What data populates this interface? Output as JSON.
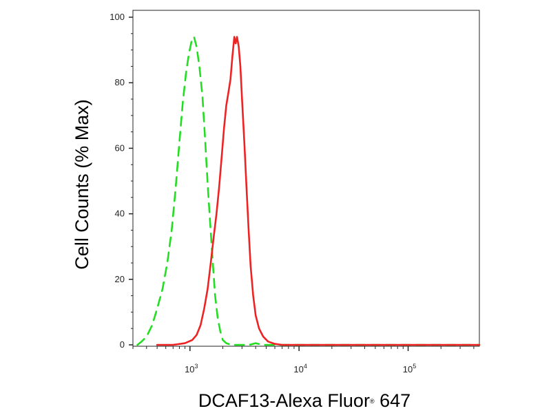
{
  "chart_data": {
    "type": "line",
    "title": "",
    "xlabel": "DCAF13-Alexa Fluor",
    "xlabel_mark": "®",
    "xlabel_suffix": " 647",
    "ylabel": "Cell Counts (% Max)",
    "x_scale": "log",
    "xlim": [
      300,
      450000
    ],
    "ylim": [
      0,
      100
    ],
    "grid": false,
    "legend": "none",
    "yticks": [
      0,
      20,
      40,
      60,
      80,
      100
    ],
    "ytick_labels": [
      "0",
      "20",
      "40",
      "60",
      "80",
      "100"
    ],
    "xticks_major": [
      1000,
      10000,
      100000
    ],
    "xtick_labels": [
      {
        "base": "10",
        "exp": "3"
      },
      {
        "base": "10",
        "exp": "4"
      },
      {
        "base": "10",
        "exp": "5"
      }
    ],
    "series": [
      {
        "name": "",
        "color": "#22dd22",
        "style": "dashed",
        "points": [
          [
            330,
            0
          ],
          [
            360,
            1
          ],
          [
            400,
            2.5
          ],
          [
            450,
            6
          ],
          [
            500,
            11
          ],
          [
            560,
            17
          ],
          [
            620,
            25
          ],
          [
            680,
            35
          ],
          [
            740,
            48
          ],
          [
            800,
            62
          ],
          [
            860,
            74
          ],
          [
            920,
            83
          ],
          [
            980,
            89
          ],
          [
            1040,
            93
          ],
          [
            1090,
            94
          ],
          [
            1150,
            91
          ],
          [
            1220,
            85
          ],
          [
            1300,
            76
          ],
          [
            1380,
            62
          ],
          [
            1460,
            48
          ],
          [
            1540,
            36
          ],
          [
            1620,
            25
          ],
          [
            1700,
            15
          ],
          [
            1800,
            8
          ],
          [
            1900,
            4
          ],
          [
            2000,
            1.5
          ],
          [
            2150,
            0.5
          ],
          [
            2400,
            0
          ],
          [
            3500,
            0
          ],
          [
            4000,
            0.5
          ],
          [
            4600,
            0
          ],
          [
            450000,
            0
          ]
        ]
      },
      {
        "name": "",
        "color": "#ee2222",
        "style": "solid",
        "points": [
          [
            500,
            0
          ],
          [
            700,
            0
          ],
          [
            900,
            0.5
          ],
          [
            1050,
            1.5
          ],
          [
            1150,
            3
          ],
          [
            1250,
            6
          ],
          [
            1350,
            11
          ],
          [
            1450,
            17
          ],
          [
            1550,
            25
          ],
          [
            1650,
            33
          ],
          [
            1750,
            40
          ],
          [
            1850,
            48
          ],
          [
            1950,
            57
          ],
          [
            2050,
            66
          ],
          [
            2150,
            73
          ],
          [
            2250,
            77
          ],
          [
            2350,
            81
          ],
          [
            2450,
            88
          ],
          [
            2550,
            94
          ],
          [
            2620,
            92
          ],
          [
            2700,
            94
          ],
          [
            2800,
            91
          ],
          [
            2900,
            85
          ],
          [
            3000,
            75
          ],
          [
            3150,
            62
          ],
          [
            3300,
            48
          ],
          [
            3450,
            35
          ],
          [
            3600,
            24
          ],
          [
            3800,
            15
          ],
          [
            4000,
            9
          ],
          [
            4300,
            5
          ],
          [
            4700,
            2.5
          ],
          [
            5200,
            1
          ],
          [
            6000,
            0.3
          ],
          [
            7000,
            0
          ],
          [
            450000,
            0
          ]
        ]
      }
    ]
  }
}
